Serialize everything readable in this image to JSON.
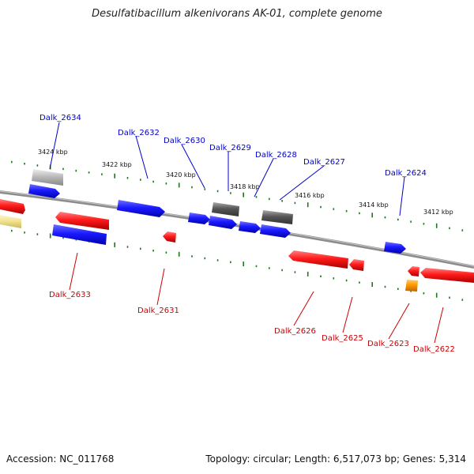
{
  "title": "Desulfatibacillum alkenivorans AK-01, complete genome",
  "footer": {
    "accession": "Accession: NC_011768",
    "summary": "Topology: circular; Length: 6,517,073 bp; Genes: 5,314"
  },
  "ticks": [
    "3424 kbp",
    "3422 kbp",
    "3420 kbp",
    "3418 kbp",
    "3416 kbp",
    "3414 kbp",
    "3412 kbp"
  ],
  "genes_top": [
    "Dalk_2634",
    "Dalk_2632",
    "Dalk_2630",
    "Dalk_2629",
    "Dalk_2628",
    "Dalk_2627",
    "Dalk_2624"
  ],
  "genes_bottom": [
    "Dalk_2633",
    "Dalk_2631",
    "Dalk_2626",
    "Dalk_2625",
    "Dalk_2623",
    "Dalk_2622"
  ],
  "colors": {
    "forward_label": "#0000cc",
    "reverse_label": "#cc0000",
    "blue": "#1a1aff",
    "red": "#ff1a1a",
    "gray": "#666666",
    "light_gray": "#bbbbbb",
    "orange": "#ff9900",
    "tan": "#f0e08c",
    "tick": "#1a7a1a"
  }
}
